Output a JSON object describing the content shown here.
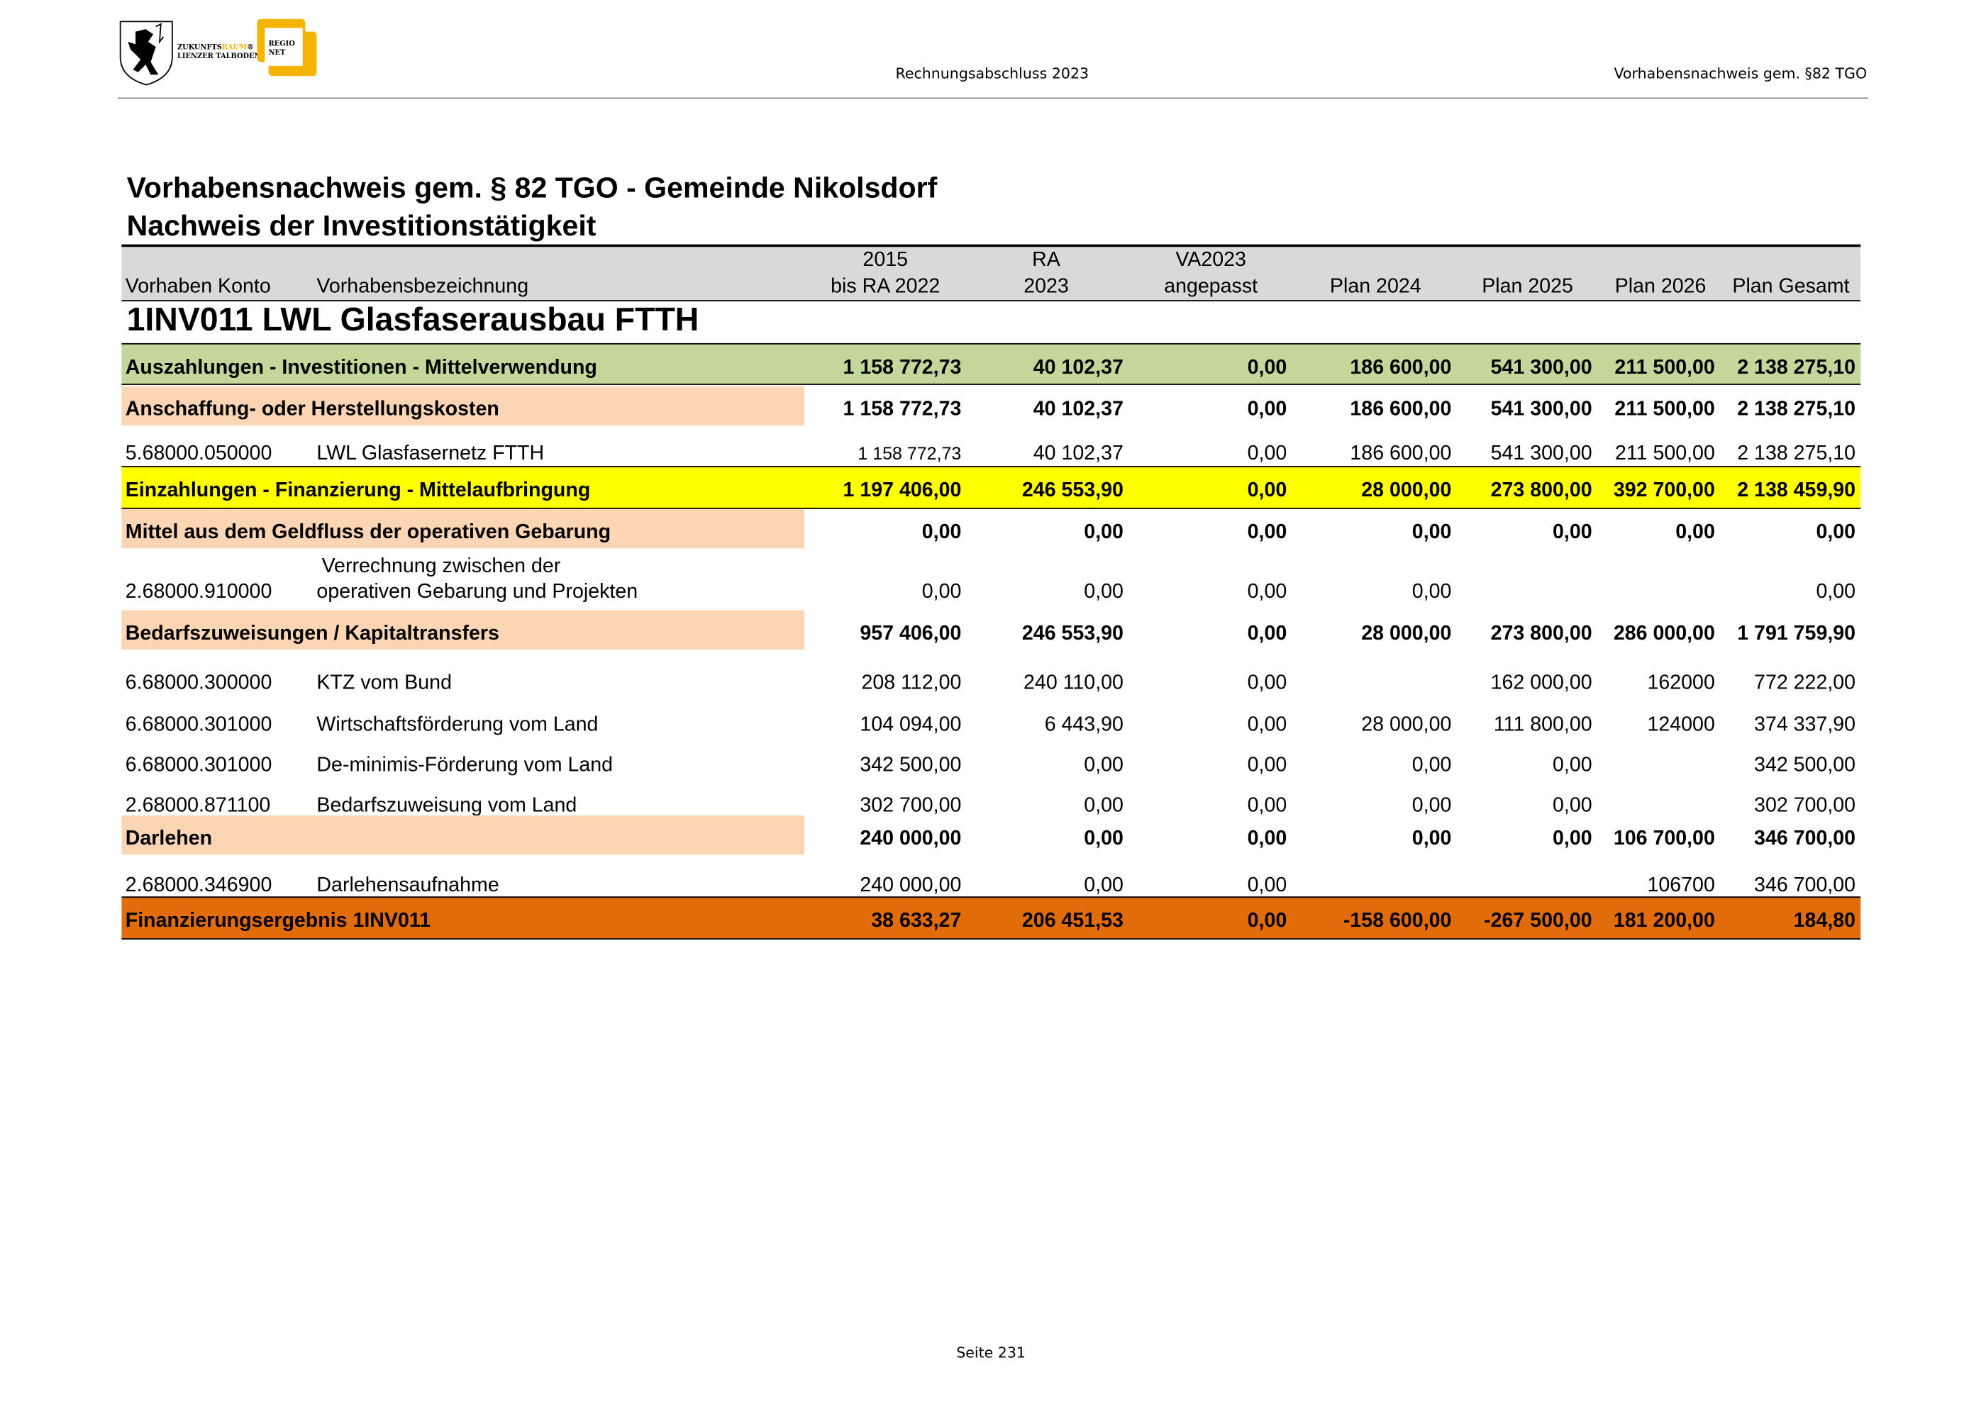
{
  "header": {
    "logo": {
      "line1a": "ZUKUNFTS",
      "line1b": "RAUM",
      "line2": "LIENZER TALBODEN",
      "regio1": "REGIO",
      "regio2": "NET",
      "accent": "#f5b400"
    },
    "center": "Rechnungsabschluss 2023",
    "right": "Vorhabensnachweis gem. §82 TGO"
  },
  "title1": "Vorhabensnachweis gem. § 82 TGO - Gemeinde Nikolsdorf",
  "title2": "Nachweis der Investitionstätigkeit",
  "columns": {
    "konto": "Vorhaben Konto",
    "bez": "Vorhabensbezeichnung",
    "c1a": "2015",
    "c1b": "bis RA 2022",
    "c2a": "RA",
    "c2b": "2023",
    "c3a": "VA2023",
    "c3b": "angepasst",
    "c4": "Plan 2024",
    "c5": "Plan 2025",
    "c6": "Plan 2026",
    "c7": "Plan Gesamt"
  },
  "project_title": "1INV011 LWL Glasfaserausbau FTTH",
  "colors": {
    "green": "#c4d79b",
    "yellow": "#ffff00",
    "peach": "#fcd5b4",
    "orange": "#e26b0a",
    "header_gray": "#d9d9d9"
  },
  "rows": [
    {
      "type": "green",
      "konto": "",
      "label": "Auszahlungen - Investitionen - Mittelverwendung",
      "values": [
        "1 158 772,73",
        "40 102,37",
        "0,00",
        "186 600,00",
        "541 300,00",
        "211 500,00",
        "2 138 275,10"
      ]
    },
    {
      "type": "peach",
      "konto": "",
      "label": "Anschaffung- oder Herstellungskosten",
      "values": [
        "1 158 772,73",
        "40 102,37",
        "0,00",
        "186 600,00",
        "541 300,00",
        "211 500,00",
        "2 138 275,10"
      ]
    },
    {
      "type": "detail",
      "konto": "5.68000.050000",
      "label": "LWL Glasfasernetz FTTH",
      "values": [
        "1 158 772,73",
        "40 102,37",
        "0,00",
        "186 600,00",
        "541 300,00",
        "211 500,00",
        "2 138 275,10"
      ]
    },
    {
      "type": "yellow",
      "konto": "",
      "label": "Einzahlungen - Finanzierung - Mittelaufbringung",
      "values": [
        "1 197 406,00",
        "246 553,90",
        "0,00",
        "28 000,00",
        "273 800,00",
        "392 700,00",
        "2 138 459,90"
      ]
    },
    {
      "type": "peach",
      "konto": "",
      "label": "Mittel aus dem Geldfluss der operativen Gebarung",
      "values": [
        "0,00",
        "0,00",
        "0,00",
        "0,00",
        "0,00",
        "0,00",
        "0,00"
      ]
    },
    {
      "type": "detail2",
      "konto": "2.68000.910000",
      "label_top": "Verrechnung zwischen der",
      "label": " operativen Gebarung und Projekten",
      "values": [
        "0,00",
        "0,00",
        "0,00",
        "0,00",
        "",
        "",
        "0,00"
      ]
    },
    {
      "type": "peach",
      "konto": "",
      "label": "Bedarfszuweisungen / Kapitaltransfers",
      "values": [
        "957 406,00",
        "246 553,90",
        "0,00",
        "28 000,00",
        "273 800,00",
        "286 000,00",
        "1 791 759,90"
      ]
    },
    {
      "type": "detail",
      "konto": "6.68000.300000",
      "label": "KTZ vom Bund",
      "values": [
        "208 112,00",
        "240 110,00",
        "0,00",
        "",
        "162 000,00",
        "162000",
        "772 222,00"
      ]
    },
    {
      "type": "detail",
      "konto": "6.68000.301000",
      "label": "Wirtschaftsförderung vom Land",
      "values": [
        "104 094,00",
        "6 443,90",
        "0,00",
        "28 000,00",
        "111 800,00",
        "124000",
        "374 337,90"
      ]
    },
    {
      "type": "detail",
      "konto": "6.68000.301000",
      "label": "De-minimis-Förderung vom Land",
      "values": [
        "342 500,00",
        "0,00",
        "0,00",
        "0,00",
        "0,00",
        "",
        "342 500,00"
      ]
    },
    {
      "type": "detail",
      "konto": "2.68000.871100",
      "label": "Bedarfszuweisung vom Land",
      "values": [
        "302 700,00",
        "0,00",
        "0,00",
        "0,00",
        "0,00",
        "",
        "302 700,00"
      ]
    },
    {
      "type": "peach",
      "konto": "",
      "label": "Darlehen",
      "values": [
        "240 000,00",
        "0,00",
        "0,00",
        "0,00",
        "0,00",
        "106 700,00",
        "346 700,00"
      ]
    },
    {
      "type": "detail",
      "konto": "2.68000.346900",
      "label": "Darlehensaufnahme",
      "values": [
        "240 000,00",
        "0,00",
        "0,00",
        "",
        "",
        "106700",
        "346 700,00"
      ]
    },
    {
      "type": "orange",
      "konto": "",
      "label": "Finanzierungsergebnis 1INV011",
      "values": [
        "38 633,27",
        "206 451,53",
        "0,00",
        "-158 600,00",
        "-267 500,00",
        "181 200,00",
        "184,80"
      ]
    }
  ],
  "footer": "Seite 231"
}
